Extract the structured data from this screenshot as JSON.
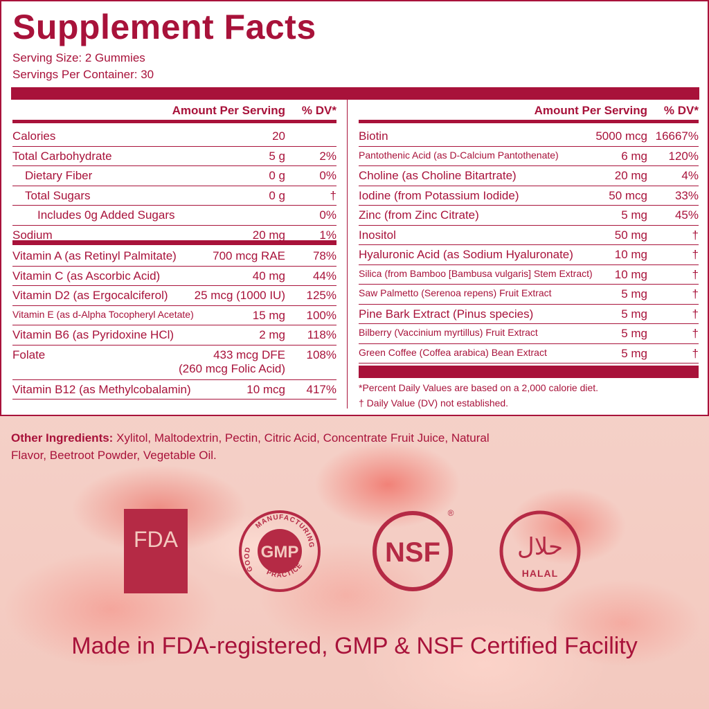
{
  "title": "Supplement Facts",
  "serving_size": "Serving Size: 2 Gummies",
  "servings_per_container": "Servings Per Container: 30",
  "headers": {
    "amount": "Amount Per Serving",
    "dv": "% DV*"
  },
  "left_rows": [
    {
      "name": "Calories",
      "amount": "20",
      "dv": ""
    },
    {
      "name": "Total Carbohydrate",
      "amount": "5 g",
      "dv": "2%"
    },
    {
      "name": "Dietary Fiber",
      "amount": "0 g",
      "dv": "0%"
    },
    {
      "name": "Total Sugars",
      "amount": "0 g",
      "dv": "†"
    },
    {
      "name": "Includes 0g Added Sugars",
      "amount": "",
      "dv": "0%"
    },
    {
      "name": "Sodium",
      "amount": "20 mg",
      "dv": "1%"
    },
    {
      "name": "Vitamin A (as Retinyl Palmitate)",
      "amount": "700 mcg RAE",
      "dv": "78%"
    },
    {
      "name": "Vitamin C (as Ascorbic Acid)",
      "amount": "40 mg",
      "dv": "44%"
    },
    {
      "name": "Vitamin D2 (as Ergocalciferol)",
      "amount": "25 mcg (1000 IU)",
      "dv": "125%"
    },
    {
      "name": "Vitamin E (as d-Alpha Tocopheryl Acetate)",
      "amount": "15 mg",
      "dv": "100%"
    },
    {
      "name": "Vitamin B6 (as Pyridoxine HCl)",
      "amount": "2 mg",
      "dv": "118%"
    },
    {
      "name": "Folate",
      "amount": "433 mcg DFE",
      "amount2": "(260 mcg Folic Acid)",
      "dv": "108%"
    },
    {
      "name": "Vitamin B12 (as Methylcobalamin)",
      "amount": "10 mcg",
      "dv": "417%"
    }
  ],
  "right_rows": [
    {
      "name": "Biotin",
      "amount": "5000 mcg",
      "dv": "16667%"
    },
    {
      "name": "Pantothenic Acid (as D-Calcium Pantothenate)",
      "amount": "6 mg",
      "dv": "120%"
    },
    {
      "name": "Choline (as Choline Bitartrate)",
      "amount": "20 mg",
      "dv": "4%"
    },
    {
      "name": "Iodine (from Potassium Iodide)",
      "amount": "50 mcg",
      "dv": "33%"
    },
    {
      "name": "Zinc (from Zinc Citrate)",
      "amount": "5 mg",
      "dv": "45%"
    },
    {
      "name": "Inositol",
      "amount": "50 mg",
      "dv": "†"
    },
    {
      "name": "Hyaluronic Acid (as Sodium Hyaluronate)",
      "amount": "10 mg",
      "dv": "†"
    },
    {
      "name": "Silica (from Bamboo [Bambusa vulgaris] Stem Extract)",
      "amount": "10 mg",
      "dv": "†"
    },
    {
      "name": "Saw Palmetto (Serenoa repens) Fruit Extract",
      "amount": "5 mg",
      "dv": "†"
    },
    {
      "name": "Pine Bark Extract (Pinus species)",
      "amount": "5 mg",
      "dv": "†"
    },
    {
      "name": "Bilberry (Vaccinium myrtillus) Fruit Extract",
      "amount": "5 mg",
      "dv": "†"
    },
    {
      "name": "Green Coffee (Coffea arabica) Bean Extract",
      "amount": "5 mg",
      "dv": "†"
    }
  ],
  "footnote1": "*Percent Daily Values are based on a 2,000 calorie diet.",
  "footnote2": "† Daily Value (DV) not established.",
  "other_label": "Other Ingredients:",
  "other_text": " Xylitol, Maltodextrin, Pectin, Citric Acid, Concentrate Fruit Juice, Natural Flavor, Beetroot Powder, Vegetable Oil.",
  "certs": {
    "fda": "FDA",
    "gmp": "GMP",
    "gmp_ring_top": "MANUFACTURING",
    "gmp_ring_left": "GOOD",
    "gmp_ring_bottom": "PRACTICE",
    "nsf": "NSF",
    "nsf_reg": "®",
    "halal_arabic": "حلال",
    "halal": "HALAL"
  },
  "made_in": "Made in FDA-registered, GMP & NSF Certified Facility",
  "colors": {
    "brand": "#a8123a",
    "cert": "#b52a45"
  }
}
